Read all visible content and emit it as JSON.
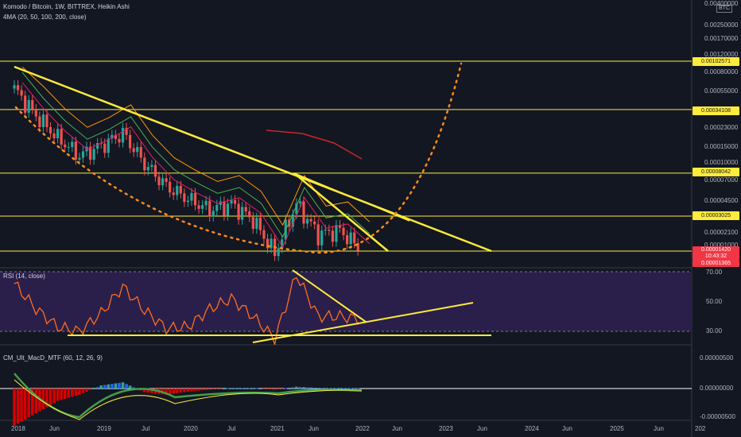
{
  "header": {
    "symbol_line": "Komodo / Bitcoin, 1W, BITTREX, Heikin Ashi",
    "ma_label": "4MA (20, 50, 100, 200, close)",
    "rsi_label": "RSI (14, close)",
    "macd_label": "CM_Ult_MacD_MTF (60, 12, 26, 9)",
    "currency": "BTC"
  },
  "colors": {
    "background": "#131722",
    "candle_up": "#26a69a",
    "candle_down": "#ef5350",
    "trendline": "#ffeb3b",
    "dotted_arc": "#ff8c1a",
    "rsi_line": "#ff6d1f",
    "rsi_band": "#2a1f4a"
  },
  "price_axis": {
    "ticks": [
      "0.00400000",
      "0.00250000",
      "0.00170000",
      "0.00120000",
      "0.00080000",
      "0.00055000",
      "0.00023000",
      "0.00015000",
      "0.00010000",
      "0.00007000",
      "0.00004500",
      "0.00002100",
      "0.00001000"
    ],
    "badges": [
      {
        "text": "0.00102571",
        "kind": "level"
      },
      {
        "text": "0.00034108",
        "kind": "level"
      },
      {
        "text": "0.00008042",
        "kind": "level"
      },
      {
        "text": "0.00003025",
        "kind": "level"
      },
      {
        "text": "0.00001420",
        "kind": "last"
      },
      {
        "text": "10:43:32",
        "kind": "last"
      },
      {
        "text": "0.00001365",
        "kind": "last"
      }
    ]
  },
  "rsi_axis": {
    "ticks": [
      "70.00",
      "50.00",
      "30.00"
    ]
  },
  "macd_axis": {
    "ticks": [
      "0.00000500",
      "0.00000000",
      "-0.00000500"
    ]
  },
  "time_axis": {
    "labels": [
      "2018",
      "Jun",
      "2019",
      "Jul",
      "2020",
      "Jul",
      "2021",
      "Jun",
      "2022",
      "Jun",
      "2023",
      "Jun",
      "2024",
      "Jun",
      "2025",
      "Jun",
      "202"
    ]
  },
  "chart_data": [
    {
      "type": "line",
      "title": "Komodo / Bitcoin, 1W, BITTREX, Heikin Ashi",
      "x": [
        "2018-01",
        "2018-04",
        "2018-07",
        "2018-10",
        "2019-01",
        "2019-04",
        "2019-07",
        "2019-10",
        "2020-01",
        "2020-04",
        "2020-07",
        "2020-10",
        "2021-01",
        "2021-04",
        "2021-07",
        "2021-10",
        "2022-01"
      ],
      "series": [
        {
          "name": "Heikin Ashi close (approx.)",
          "values": [
            0.00055,
            0.0003,
            0.00018,
            0.00012,
            0.00015,
            0.0002,
            0.0001,
            6e-05,
            4.5e-05,
            3.5e-05,
            4e-05,
            2.8e-05,
            1.3e-05,
            4e-05,
            2e-05,
            2.2e-05,
            1.4e-05
          ]
        }
      ],
      "scale": "log",
      "horizontal_levels": [
        0.00102571,
        0.00034108,
        8.042e-05,
        3.025e-05,
        1.365e-05
      ],
      "last_price": 1.42e-05
    },
    {
      "type": "line",
      "title": "RSI (14, close)",
      "x": [
        "2018-01",
        "2018-04",
        "2018-07",
        "2018-10",
        "2019-01",
        "2019-04",
        "2019-07",
        "2019-10",
        "2020-01",
        "2020-04",
        "2020-07",
        "2020-10",
        "2021-01",
        "2021-04",
        "2021-07",
        "2021-10",
        "2022-01"
      ],
      "series": [
        {
          "name": "RSI",
          "values": [
            62,
            45,
            33,
            30,
            42,
            60,
            44,
            32,
            33,
            45,
            52,
            40,
            25,
            68,
            40,
            40,
            38
          ]
        }
      ],
      "ylim": [
        20,
        70
      ],
      "bands": [
        70,
        30
      ]
    },
    {
      "type": "bar",
      "title": "CM_Ult_MacD_MTF (60, 12, 26, 9)",
      "x": [
        "2018-01",
        "2018-04",
        "2018-07",
        "2018-10",
        "2019-01",
        "2019-04",
        "2019-07",
        "2019-10",
        "2020-01",
        "2020-04",
        "2020-07",
        "2020-10",
        "2021-01",
        "2021-04",
        "2021-07",
        "2021-10",
        "2022-01"
      ],
      "series": [
        {
          "name": "histogram",
          "values": [
            -6e-06,
            -4e-06,
            -2e-06,
            -1e-06,
            5e-07,
            1e-06,
            -6e-07,
            -1e-06,
            -5e-07,
            -2e-07,
            1e-07,
            1e-07,
            -2e-07,
            3e-07,
            1e-07,
            5e-08,
            1e-07
          ]
        }
      ]
    }
  ]
}
